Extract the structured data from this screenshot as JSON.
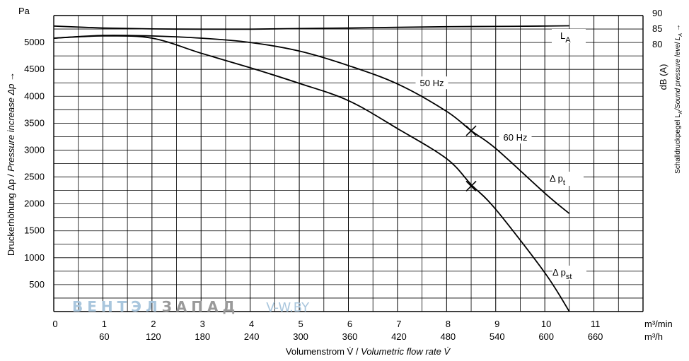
{
  "chart_data": {
    "type": "line",
    "x_unit_primary": "m³/min",
    "x_unit_secondary": "m³/h",
    "x_ticks_primary": [
      "0",
      "1",
      "2",
      "3",
      "4",
      "5",
      "6",
      "7",
      "8",
      "9",
      "10",
      "11"
    ],
    "x_ticks_secondary": [
      "60",
      "120",
      "180",
      "240",
      "300",
      "360",
      "420",
      "480",
      "540",
      "600",
      "660"
    ],
    "xlim": [
      0,
      12
    ],
    "y_unit": "Pa",
    "y_ticks": [
      "500",
      "1000",
      "1500",
      "2000",
      "2500",
      "3000",
      "3500",
      "4000",
      "4500",
      "5000"
    ],
    "ylim": [
      0,
      5500
    ],
    "y2_unit": "dB (A)",
    "y2_ticks": [
      "80",
      "85",
      "90"
    ],
    "y2lim": [
      80,
      90
    ],
    "xlabel_plain": "Volumenstrom V̇ / ",
    "xlabel_italic": "Volumetric flow rate V̇",
    "ylabel_plain": "Druckerhöhung Δp / ",
    "ylabel_italic": "Pressure increase  Δp →",
    "y2label_plain": "Schalldruckpegel L",
    "y2label_sub": "A",
    "y2label_italic": "/Sound pressure level L",
    "y2label_italic_sub": "A",
    "y2label_arrow": " →",
    "series": [
      {
        "label": "Δ p",
        "label_sub": "t",
        "x": [
          0,
          1,
          2,
          3,
          4,
          5,
          6,
          7,
          8,
          8.5,
          9,
          10,
          10.5
        ],
        "y": [
          5080,
          5130,
          5120,
          5080,
          5000,
          4840,
          4570,
          4230,
          3720,
          3360,
          3030,
          2200,
          1820
        ]
      },
      {
        "label": "Δ p",
        "label_sub": "st",
        "x": [
          0,
          1,
          2,
          3,
          4,
          5,
          6,
          7,
          8,
          8.5,
          9,
          10,
          10.5
        ],
        "y": [
          5080,
          5120,
          5080,
          4800,
          4530,
          4240,
          3920,
          3400,
          2840,
          2360,
          1900,
          720,
          0
        ]
      },
      {
        "label": "L",
        "label_sub": "A",
        "x": [
          0,
          1,
          2,
          3,
          4,
          5,
          6,
          7,
          8,
          9,
          10,
          10.5
        ],
        "y2": [
          85.7,
          85.1,
          84.8,
          84.7,
          84.7,
          84.9,
          85.1,
          85.3,
          85.5,
          85.6,
          85.7,
          85.8
        ]
      }
    ],
    "annotations": [
      {
        "text": "50 Hz",
        "x": 7.7,
        "y": 4250
      },
      {
        "text": "60 Hz",
        "x": 9.4,
        "y": 3240
      }
    ],
    "markers": [
      {
        "x": 8.5,
        "y": 3360
      },
      {
        "x": 8.5,
        "y": 2330
      }
    ],
    "grid": true
  },
  "watermark": {
    "part1": "ВЕНТЭЛ",
    "part2": "ЗАПАД",
    "part3": "V-W.BY"
  }
}
